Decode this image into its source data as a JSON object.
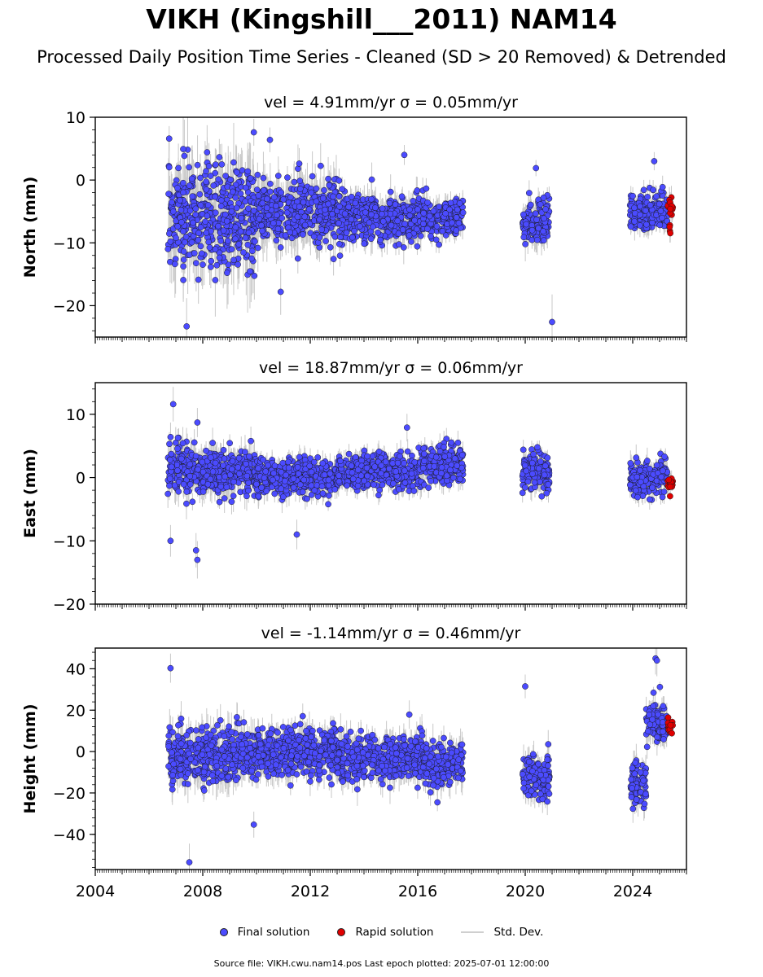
{
  "title": "VIKH (Kingshill___2011) NAM14",
  "subtitle": "Processed Daily Position Time Series - Cleaned (SD > 20 Removed) & Detrended",
  "legend": {
    "final": "Final solution",
    "rapid": "Rapid solution",
    "std": "Std. Dev."
  },
  "source_text": "Source file: VIKH.cwu.nam14.pos  Last epoch plotted: 2025-07-01 12:00:00",
  "colors": {
    "final": "#4b4bff",
    "rapid": "#e00000",
    "std": "#c8c8c8"
  },
  "chart_data": [
    {
      "type": "scatter",
      "title": "vel = 4.91mm/yr   σ = 0.05mm/yr",
      "xlabel": "",
      "ylabel": "North (mm)",
      "xlim": [
        2004,
        2026
      ],
      "ylim": [
        -25,
        10
      ],
      "yticks": [
        10,
        0,
        -10,
        -20
      ],
      "ytick_labels": [
        "10",
        "0",
        "−10",
        "−20"
      ],
      "series": [
        {
          "name": "Final solution",
          "approximate_envelope": [
            {
              "x_range": [
                2006.7,
                2010.0
              ],
              "y_mean": -6,
              "y_spread": 9
            },
            {
              "x_range": [
                2010.0,
                2013.0
              ],
              "y_mean": -5,
              "y_spread": 6
            },
            {
              "x_range": [
                2013.0,
                2016.2
              ],
              "y_mean": -6,
              "y_spread": 4
            },
            {
              "x_range": [
                2016.2,
                2017.7
              ],
              "y_mean": -6,
              "y_spread": 3
            },
            {
              "x_range": [
                2019.9,
                2020.9
              ],
              "y_mean": -7,
              "y_spread": 4
            },
            {
              "x_range": [
                2023.9,
                2025.3
              ],
              "y_mean": -5,
              "y_spread": 3
            }
          ],
          "outliers": [
            [
              2006.75,
              6.6
            ],
            [
              2007.4,
              -23.3
            ],
            [
              2009.9,
              7.6
            ],
            [
              2010.5,
              6.4
            ],
            [
              2015.5,
              4.0
            ],
            [
              2020.4,
              1.9
            ],
            [
              2021.0,
              -22.6
            ],
            [
              2024.8,
              3.0
            ],
            [
              2010.9,
              -17.8
            ]
          ]
        },
        {
          "name": "Rapid solution",
          "approximate_envelope": [
            {
              "x_range": [
                2025.3,
                2025.5
              ],
              "y_mean": -5,
              "y_spread": 3
            }
          ]
        }
      ]
    },
    {
      "type": "scatter",
      "title": "vel = 18.87mm/yr   σ = 0.06mm/yr",
      "xlabel": "",
      "ylabel": "East (mm)",
      "xlim": [
        2004,
        2026
      ],
      "ylim": [
        -20,
        15
      ],
      "yticks": [
        10,
        0,
        -10,
        -20
      ],
      "ytick_labels": [
        "10",
        "0",
        "−10",
        "−20"
      ],
      "series": [
        {
          "name": "Final solution",
          "approximate_envelope": [
            {
              "x_range": [
                2006.7,
                2010.0
              ],
              "y_mean": 1,
              "y_spread": 4
            },
            {
              "x_range": [
                2010.0,
                2013.0
              ],
              "y_mean": 0,
              "y_spread": 3
            },
            {
              "x_range": [
                2013.0,
                2016.2
              ],
              "y_mean": 1,
              "y_spread": 3
            },
            {
              "x_range": [
                2016.2,
                2017.7
              ],
              "y_mean": 2,
              "y_spread": 3
            },
            {
              "x_range": [
                2019.9,
                2020.9
              ],
              "y_mean": 1,
              "y_spread": 3
            },
            {
              "x_range": [
                2023.9,
                2025.3
              ],
              "y_mean": 0,
              "y_spread": 3
            }
          ],
          "outliers": [
            [
              2006.9,
              11.6
            ],
            [
              2007.8,
              8.7
            ],
            [
              2007.8,
              -13.0
            ],
            [
              2007.75,
              -11.5
            ],
            [
              2006.8,
              -10.0
            ],
            [
              2011.5,
              -9.0
            ],
            [
              2015.6,
              7.9
            ]
          ]
        },
        {
          "name": "Rapid solution",
          "approximate_envelope": [
            {
              "x_range": [
                2025.3,
                2025.5
              ],
              "y_mean": -1,
              "y_spread": 2
            }
          ]
        }
      ]
    },
    {
      "type": "scatter",
      "title": "vel = -1.14mm/yr   σ = 0.46mm/yr",
      "xlabel": "",
      "ylabel": "Height (mm)",
      "xlim": [
        2004,
        2026
      ],
      "ylim": [
        -57,
        50
      ],
      "yticks": [
        40,
        20,
        0,
        -20,
        -40
      ],
      "ytick_labels": [
        "40",
        "20",
        "0",
        "−20",
        "−40"
      ],
      "xticks": [
        2004,
        2008,
        2012,
        2016,
        2020,
        2024
      ],
      "xtick_labels": [
        "2004",
        "2008",
        "2012",
        "2016",
        "2020",
        "2024"
      ],
      "series": [
        {
          "name": "Final solution",
          "approximate_envelope": [
            {
              "x_range": [
                2006.7,
                2010.0
              ],
              "y_mean": -2,
              "y_spread": 14
            },
            {
              "x_range": [
                2010.0,
                2013.0
              ],
              "y_mean": 0,
              "y_spread": 12
            },
            {
              "x_range": [
                2013.0,
                2016.2
              ],
              "y_mean": -3,
              "y_spread": 12
            },
            {
              "x_range": [
                2016.2,
                2017.7
              ],
              "y_mean": -6,
              "y_spread": 12
            },
            {
              "x_range": [
                2019.9,
                2020.9
              ],
              "y_mean": -13,
              "y_spread": 11
            },
            {
              "x_range": [
                2023.9,
                2024.5
              ],
              "y_mean": -14,
              "y_spread": 12
            },
            {
              "x_range": [
                2024.5,
                2025.3
              ],
              "y_mean": 14,
              "y_spread": 10
            }
          ],
          "outliers": [
            [
              2006.8,
              40.3
            ],
            [
              2007.5,
              -53.5
            ],
            [
              2009.9,
              -35.3
            ],
            [
              2020.0,
              31.5
            ],
            [
              2024.85,
              45.0
            ],
            [
              2024.9,
              44.0
            ]
          ]
        },
        {
          "name": "Rapid solution",
          "approximate_envelope": [
            {
              "x_range": [
                2025.3,
                2025.5
              ],
              "y_mean": 12,
              "y_spread": 6
            }
          ]
        }
      ]
    }
  ]
}
